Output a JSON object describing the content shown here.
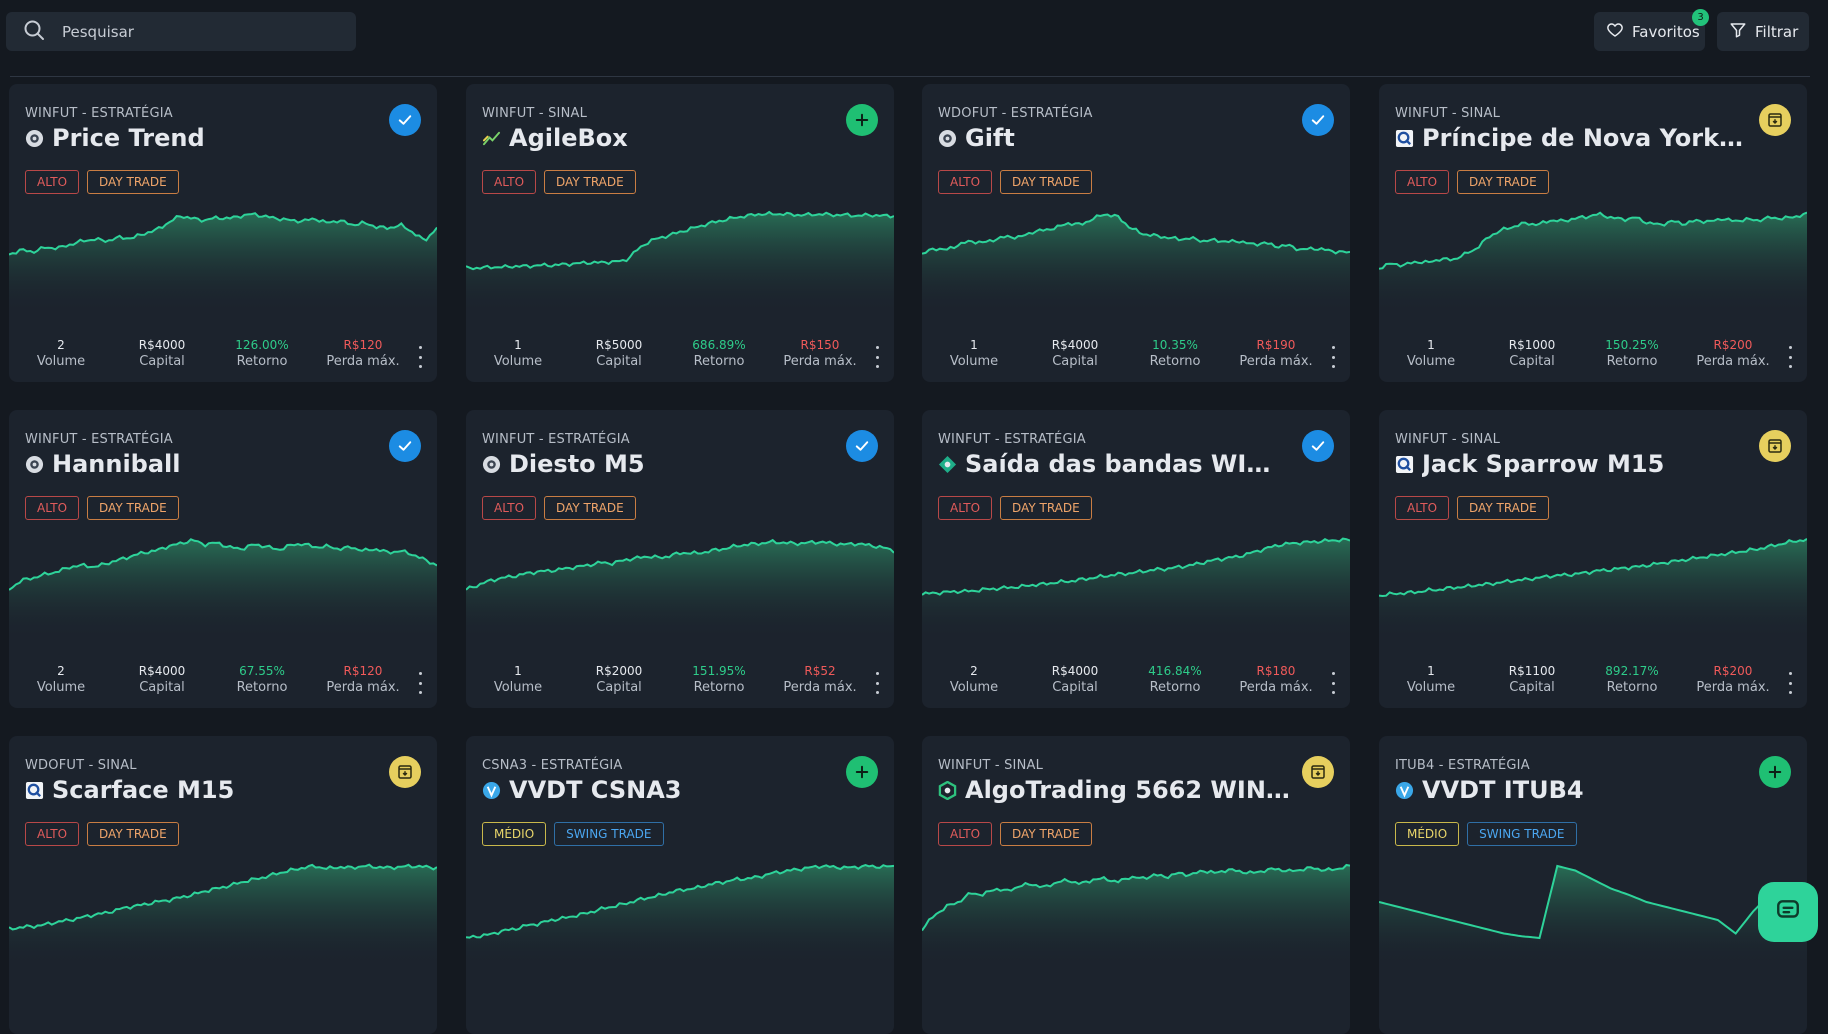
{
  "search": {
    "placeholder": "Pesquisar"
  },
  "topbar": {
    "favorites_label": "Favoritos",
    "favorites_count": "3",
    "filter_label": "Filtrar"
  },
  "colors": {
    "background": "#141920",
    "card": "#1c232d",
    "accent_green": "#2ed39a",
    "check_blue": "#1c8ce3",
    "plus_green": "#1fbf73",
    "box_yellow": "#e6cf5e"
  },
  "stat_labels": {
    "volume": "Volume",
    "capital": "Capital",
    "retorno": "Retorno",
    "perda": "Perda máx."
  },
  "cards": [
    {
      "meta": "WINFUT - ESTRATÉGIA",
      "title": "Price Trend",
      "icon": "strategy-icon",
      "action": "check",
      "tags": [
        {
          "text": "ALTO",
          "style": "red"
        },
        {
          "text": "DAY TRADE",
          "style": "orange"
        }
      ],
      "volume": "2",
      "capital": "R$4000",
      "retorno": "126.00%",
      "perda": "R$120"
    },
    {
      "meta": "WINFUT - SINAL",
      "title": "AgileBox",
      "icon": "trend-icon",
      "action": "plus",
      "tags": [
        {
          "text": "ALTO",
          "style": "red"
        },
        {
          "text": "DAY TRADE",
          "style": "orange"
        }
      ],
      "volume": "1",
      "capital": "R$5000",
      "retorno": "686.89%",
      "perda": "R$150"
    },
    {
      "meta": "WDOFUT - ESTRATÉGIA",
      "title": "Gift",
      "icon": "strategy-icon",
      "action": "check",
      "tags": [
        {
          "text": "ALTO",
          "style": "red"
        },
        {
          "text": "DAY TRADE",
          "style": "orange"
        }
      ],
      "volume": "1",
      "capital": "R$4000",
      "retorno": "10.35%",
      "perda": "R$190"
    },
    {
      "meta": "WINFUT - SINAL",
      "title": "Príncipe de Nova York ...",
      "icon": "provider-q-icon",
      "action": "box",
      "tags": [
        {
          "text": "ALTO",
          "style": "red"
        },
        {
          "text": "DAY TRADE",
          "style": "orange"
        }
      ],
      "volume": "1",
      "capital": "R$1000",
      "retorno": "150.25%",
      "perda": "R$200"
    },
    {
      "meta": "WINFUT - ESTRATÉGIA",
      "title": "Hanniball",
      "icon": "strategy-icon",
      "action": "check",
      "tags": [
        {
          "text": "ALTO",
          "style": "red"
        },
        {
          "text": "DAY TRADE",
          "style": "orange"
        }
      ],
      "volume": "2",
      "capital": "R$4000",
      "retorno": "67.55%",
      "perda": "R$120"
    },
    {
      "meta": "WINFUT - ESTRATÉGIA",
      "title": "Diesto M5",
      "icon": "strategy-icon",
      "action": "check",
      "tags": [
        {
          "text": "ALTO",
          "style": "red"
        },
        {
          "text": "DAY TRADE",
          "style": "orange"
        }
      ],
      "volume": "1",
      "capital": "R$2000",
      "retorno": "151.95%",
      "perda": "R$52"
    },
    {
      "meta": "WINFUT - ESTRATÉGIA",
      "title": "Saída das bandas WIN...",
      "icon": "diamond-icon",
      "action": "check",
      "tags": [
        {
          "text": "ALTO",
          "style": "red"
        },
        {
          "text": "DAY TRADE",
          "style": "orange"
        }
      ],
      "volume": "2",
      "capital": "R$4000",
      "retorno": "416.84%",
      "perda": "R$180"
    },
    {
      "meta": "WINFUT - SINAL",
      "title": "Jack Sparrow M15",
      "icon": "provider-q-icon",
      "action": "box",
      "tags": [
        {
          "text": "ALTO",
          "style": "red"
        },
        {
          "text": "DAY TRADE",
          "style": "orange"
        }
      ],
      "volume": "1",
      "capital": "R$1100",
      "retorno": "892.17%",
      "perda": "R$200"
    },
    {
      "meta": "WDOFUT - SINAL",
      "title": "Scarface M15",
      "icon": "provider-q-icon",
      "action": "box",
      "tags": [
        {
          "text": "ALTO",
          "style": "red"
        },
        {
          "text": "DAY TRADE",
          "style": "orange"
        }
      ]
    },
    {
      "meta": "CSNA3 - ESTRATÉGIA",
      "title": "VVDT CSNA3",
      "icon": "provider-v-icon",
      "action": "plus",
      "tags": [
        {
          "text": "MÉDIO",
          "style": "yellow"
        },
        {
          "text": "SWING TRADE",
          "style": "blue"
        }
      ]
    },
    {
      "meta": "WINFUT - SINAL",
      "title": "AlgoTrading 5662 WIN ...",
      "icon": "hex-icon",
      "action": "box",
      "tags": [
        {
          "text": "ALTO",
          "style": "red"
        },
        {
          "text": "DAY TRADE",
          "style": "orange"
        }
      ]
    },
    {
      "meta": "ITUB4 - ESTRATÉGIA",
      "title": "VVDT ITUB4",
      "icon": "provider-v-icon",
      "action": "plus",
      "tags": [
        {
          "text": "MÉDIO",
          "style": "yellow"
        },
        {
          "text": "SWING TRADE",
          "style": "blue"
        }
      ]
    }
  ]
}
